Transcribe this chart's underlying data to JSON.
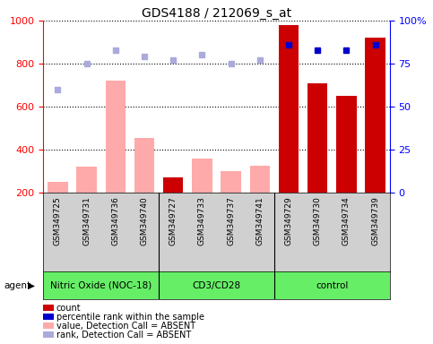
{
  "title": "GDS4188 / 212069_s_at",
  "samples": [
    "GSM349725",
    "GSM349731",
    "GSM349736",
    "GSM349740",
    "GSM349727",
    "GSM349733",
    "GSM349737",
    "GSM349741",
    "GSM349729",
    "GSM349730",
    "GSM349734",
    "GSM349739"
  ],
  "groups": [
    {
      "label": "Nitric Oxide (NOC-18)",
      "start": 0,
      "end": 4
    },
    {
      "label": "CD3/CD28",
      "start": 4,
      "end": 8
    },
    {
      "label": "control",
      "start": 8,
      "end": 12
    }
  ],
  "count_values": [
    null,
    null,
    null,
    null,
    270,
    null,
    null,
    null,
    980,
    710,
    650,
    920
  ],
  "value_absent": [
    250,
    320,
    720,
    455,
    null,
    360,
    300,
    325,
    null,
    null,
    null,
    null
  ],
  "rank_present": [
    null,
    null,
    null,
    null,
    null,
    null,
    null,
    null,
    86,
    83,
    83,
    86
  ],
  "rank_absent": [
    60,
    75,
    83,
    79,
    77,
    80,
    75,
    77,
    null,
    null,
    null,
    null
  ],
  "ylim_left": [
    200,
    1000
  ],
  "ylim_right": [
    0,
    100
  ],
  "yticks_left": [
    200,
    400,
    600,
    800,
    1000
  ],
  "yticks_right": [
    0,
    25,
    50,
    75,
    100
  ],
  "bar_color_present": "#cc0000",
  "bar_color_absent": "#ffaaaa",
  "dot_color_present": "#0000cc",
  "dot_color_absent": "#aaaadd",
  "group_color": "#66ee66",
  "gray_color": "#d0d0d0",
  "bg_color": "#ffffff"
}
